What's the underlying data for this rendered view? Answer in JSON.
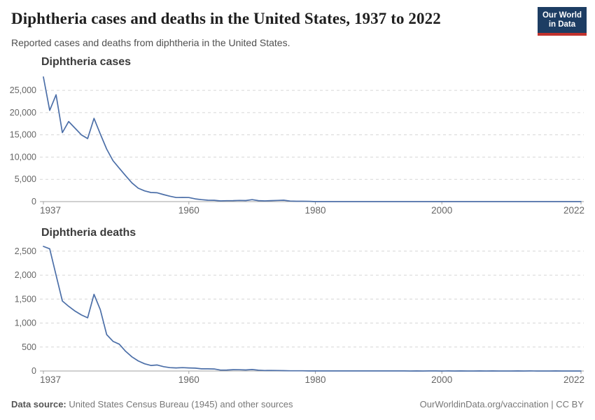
{
  "page": {
    "title": "Diphtheria cases and deaths in the United States, 1937 to 2022",
    "subtitle": "Reported cases and deaths from diphtheria in the United States."
  },
  "logo": {
    "line1": "Our World",
    "line2": "in Data",
    "bg_color": "#1d3d63",
    "bar_color": "#c1322d"
  },
  "footer": {
    "datasource_label": "Data source:",
    "datasource_text": " United States Census Bureau (1945) and other sources",
    "credit": "OurWorldinData.org/vaccination | CC BY"
  },
  "colors": {
    "line": "#4c6fa8",
    "axis": "#a1a1a1",
    "grid": "#d6d6d6",
    "tick_text": "#666666"
  },
  "chart_data": [
    {
      "type": "line",
      "title": "Diphtheria cases",
      "xlabel": "",
      "ylabel": "",
      "x_start": 1937,
      "x_end": 2022,
      "xticks": [
        1937,
        1960,
        1980,
        2000,
        2022
      ],
      "yticks": [
        0,
        5000,
        10000,
        15000,
        20000,
        25000
      ],
      "ylim": [
        0,
        28000
      ],
      "grid": "dashed-horizontal",
      "legend": "none",
      "values": [
        28000,
        20500,
        24000,
        15500,
        18000,
        16500,
        15000,
        14150,
        18700,
        15200,
        11800,
        9200,
        7500,
        5800,
        4200,
        3000,
        2400,
        2050,
        1985,
        1570,
        1210,
        920,
        935,
        918,
        617,
        444,
        314,
        293,
        164,
        209,
        219,
        260,
        241,
        435,
        215,
        152,
        228,
        272,
        307,
        128,
        84,
        76,
        59,
        3,
        5,
        2,
        5,
        1,
        3,
        0,
        3,
        2,
        3,
        4,
        5,
        4,
        0,
        2,
        0,
        2,
        4,
        1,
        1,
        1,
        2,
        1,
        1,
        0,
        0,
        0,
        0,
        0,
        0,
        0,
        0,
        1,
        0,
        1,
        0,
        0,
        0,
        1,
        2,
        0,
        0,
        0
      ]
    },
    {
      "type": "line",
      "title": "Diphtheria deaths",
      "xlabel": "",
      "ylabel": "",
      "x_start": 1937,
      "x_end": 2022,
      "xticks": [
        1937,
        1960,
        1980,
        2000,
        2022
      ],
      "yticks": [
        0,
        500,
        1000,
        1500,
        2000,
        2500
      ],
      "ylim": [
        0,
        2600
      ],
      "grid": "dashed-horizontal",
      "legend": "none",
      "values": [
        2600,
        2550,
        2000,
        1460,
        1350,
        1250,
        1170,
        1110,
        1600,
        1280,
        760,
        620,
        560,
        410,
        295,
        210,
        150,
        115,
        125,
        90,
        70,
        65,
        70,
        65,
        60,
        45,
        45,
        42,
        19,
        20,
        28,
        26,
        22,
        30,
        18,
        10,
        12,
        10,
        8,
        5,
        5,
        4,
        2,
        1,
        1,
        1,
        1,
        1,
        2,
        1,
        1,
        1,
        2,
        1,
        1,
        2,
        1,
        1,
        0,
        1,
        0,
        1,
        1,
        0,
        1,
        0,
        1,
        0,
        0,
        1,
        0,
        1,
        0,
        0,
        0,
        1,
        0,
        1,
        0,
        0,
        0,
        1,
        0,
        0,
        0,
        0
      ]
    }
  ]
}
